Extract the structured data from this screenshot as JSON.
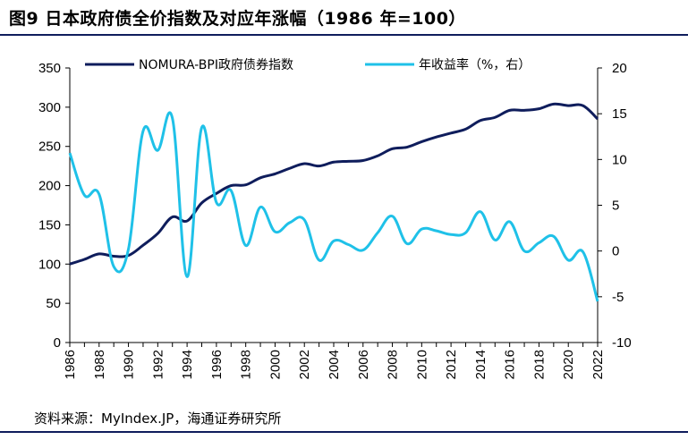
{
  "title": "图9  日本政府债全价指数及对应年涨幅（1986 年=100）",
  "source": "资料来源：MyIndex.JP，海通证券研究所",
  "chart_data": {
    "type": "line",
    "x": [
      "1986",
      "1987",
      "1988",
      "1989",
      "1990",
      "1991",
      "1992",
      "1993",
      "1994",
      "1995",
      "1996",
      "1997",
      "1998",
      "1999",
      "2000",
      "2001",
      "2002",
      "2003",
      "2004",
      "2005",
      "2006",
      "2007",
      "2008",
      "2009",
      "2010",
      "2011",
      "2012",
      "2013",
      "2014",
      "2015",
      "2016",
      "2017",
      "2018",
      "2019",
      "2020",
      "2021",
      "2022"
    ],
    "x_tick_labels": [
      "1986",
      "1988",
      "1990",
      "1992",
      "1994",
      "1996",
      "1998",
      "2000",
      "2002",
      "2004",
      "2006",
      "2008",
      "2010",
      "2012",
      "2014",
      "2016",
      "2018",
      "2020",
      "2022"
    ],
    "y_left_ticks": [
      "0",
      "50",
      "100",
      "150",
      "200",
      "250",
      "300",
      "350"
    ],
    "y_right_ticks": [
      "-10",
      "-5",
      "0",
      "5",
      "10",
      "15",
      "20"
    ],
    "ylim_left": [
      0,
      350
    ],
    "ylim_right": [
      -10,
      20
    ],
    "legend_position": "top",
    "series": [
      {
        "name": "NOMURA-BPI政府债券指数",
        "axis": "left",
        "color": "#0f1d5c",
        "values": [
          100,
          106,
          113,
          110,
          111,
          124,
          139,
          160,
          155,
          178,
          190,
          200,
          201,
          210,
          215,
          222,
          228,
          225,
          230,
          231,
          232,
          238,
          247,
          249,
          256,
          262,
          267,
          272,
          283,
          287,
          296,
          296,
          298,
          304,
          302,
          302,
          285
        ]
      },
      {
        "name": "年收益率（%，右）",
        "axis": "right",
        "color": "#1fc1e8",
        "values": [
          10.7,
          6.1,
          6.2,
          -1.7,
          0.2,
          13.1,
          11.0,
          14.5,
          -2.8,
          13.5,
          5.3,
          6.6,
          0.6,
          4.8,
          2.1,
          3.1,
          3.4,
          -1.0,
          1.1,
          0.7,
          0.1,
          2.0,
          3.8,
          0.8,
          2.4,
          2.2,
          1.8,
          2.0,
          4.3,
          1.2,
          3.2,
          0.0,
          0.9,
          1.6,
          -1.0,
          -0.1,
          -5.5
        ]
      }
    ]
  }
}
